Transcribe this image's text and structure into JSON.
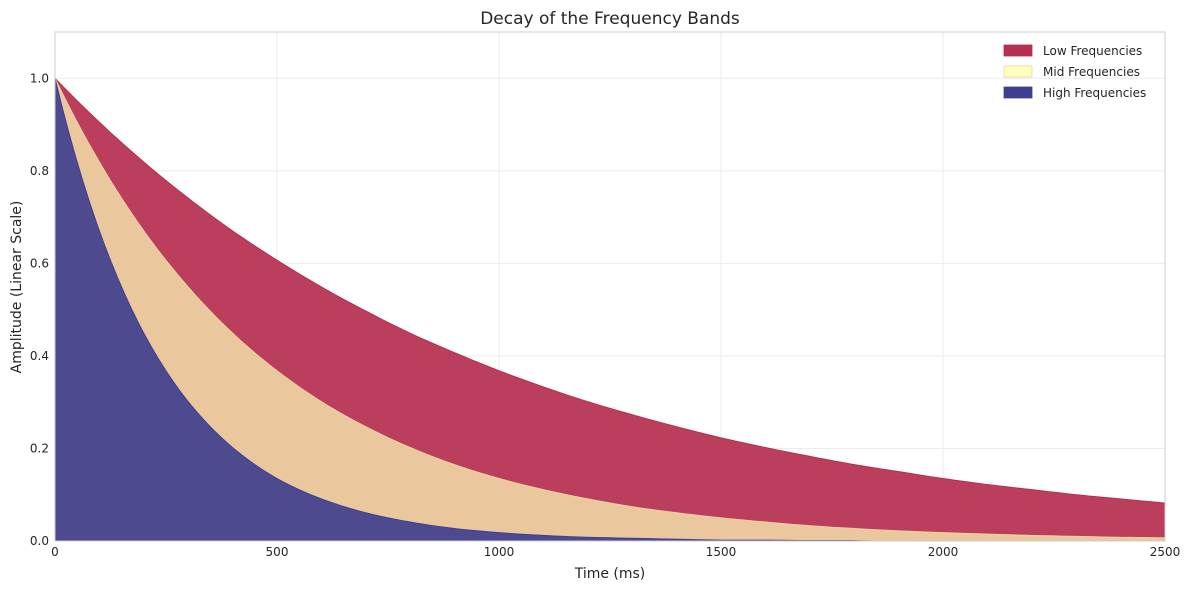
{
  "chart_data": {
    "type": "area",
    "stacked": true,
    "title": "Decay of the Frequency Bands",
    "xlabel": "Time (ms)",
    "ylabel": "Amplitude (Linear Scale)",
    "xlim": [
      0,
      2500
    ],
    "ylim": [
      0,
      1.1
    ],
    "xticks": [
      0,
      500,
      1000,
      1500,
      2000,
      2500
    ],
    "xtick_labels": [
      "0",
      "500",
      "1000",
      "1500",
      "2000",
      "2500"
    ],
    "yticks": [
      0.0,
      0.2,
      0.4,
      0.6,
      0.8,
      1.0
    ],
    "ytick_labels": [
      "0.0",
      "0.2",
      "0.4",
      "0.6",
      "0.8",
      "1.0"
    ],
    "grid": true,
    "legend_position": "top-right",
    "x": [
      0,
      100,
      200,
      300,
      400,
      500,
      600,
      700,
      800,
      900,
      1000,
      1100,
      1200,
      1300,
      1400,
      1500,
      1600,
      1700,
      1800,
      1900,
      2000,
      2100,
      2200,
      2300,
      2400,
      2500
    ],
    "series": [
      {
        "name": "High Frequencies",
        "color": "#3f3f8f",
        "values": [
          1.0,
          0.67,
          0.449,
          0.301,
          0.202,
          0.135,
          0.091,
          0.061,
          0.041,
          0.027,
          0.018,
          0.012,
          0.008,
          0.006,
          0.004,
          0.002,
          0.002,
          0.001,
          0.001,
          0.0,
          0.0,
          0.0,
          0.0,
          0.0,
          0.0,
          0.0
        ]
      },
      {
        "name": "Mid Frequencies",
        "color": "#efd3a4",
        "legend_color": "#ffffbf",
        "values": [
          1.0,
          0.819,
          0.67,
          0.549,
          0.449,
          0.368,
          0.301,
          0.247,
          0.202,
          0.165,
          0.135,
          0.111,
          0.091,
          0.074,
          0.061,
          0.05,
          0.041,
          0.033,
          0.027,
          0.022,
          0.018,
          0.015,
          0.012,
          0.01,
          0.008,
          0.007
        ]
      },
      {
        "name": "Low Frequencies",
        "color": "#b52f4f",
        "values": [
          1.0,
          0.905,
          0.819,
          0.741,
          0.67,
          0.607,
          0.549,
          0.497,
          0.449,
          0.407,
          0.368,
          0.333,
          0.301,
          0.273,
          0.247,
          0.223,
          0.202,
          0.183,
          0.165,
          0.15,
          0.135,
          0.122,
          0.111,
          0.1,
          0.091,
          0.082
        ]
      }
    ],
    "legend_order": [
      "Low Frequencies",
      "Mid Frequencies",
      "High Frequencies"
    ]
  }
}
